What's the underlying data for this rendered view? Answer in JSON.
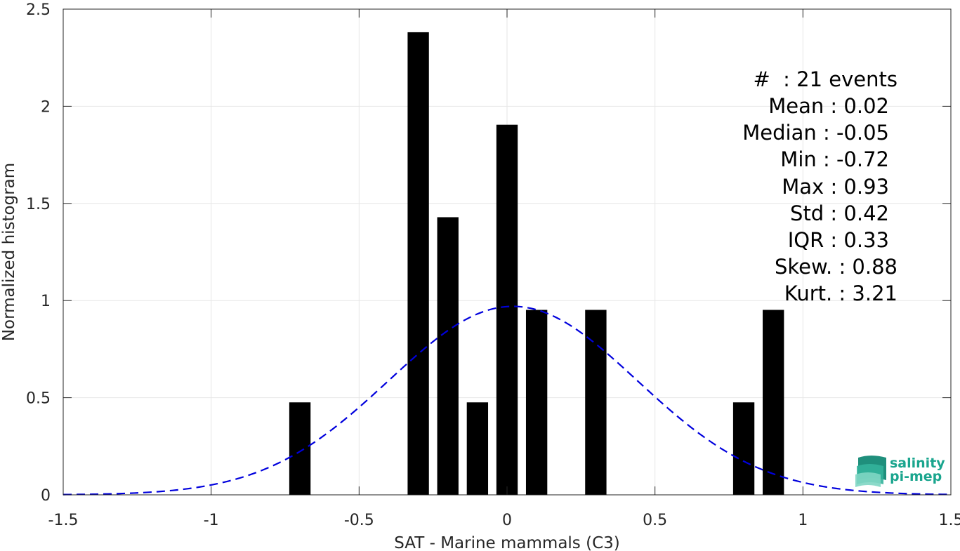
{
  "chart_data": {
    "type": "bar",
    "xlabel": "SAT - Marine mammals (C3)",
    "ylabel": "Normalized histogram",
    "xlim": [
      -1.5,
      1.5
    ],
    "ylim": [
      0,
      2.5
    ],
    "xticks": [
      -1.5,
      -1,
      -0.5,
      0,
      0.5,
      1,
      1.5
    ],
    "xtick_labels": [
      "-1.5",
      "-1",
      "-0.5",
      "0",
      "0.5",
      "1",
      "1.5"
    ],
    "yticks": [
      0,
      0.5,
      1,
      1.5,
      2,
      2.5
    ],
    "ytick_labels": [
      "0",
      "0.5",
      "1",
      "1.5",
      "2",
      "2.5"
    ],
    "grid": true,
    "bar_color": "#000000",
    "bin_width": 0.1,
    "bins": [
      {
        "center": -0.7,
        "value": 0.476
      },
      {
        "center": -0.3,
        "value": 2.381
      },
      {
        "center": -0.2,
        "value": 1.429
      },
      {
        "center": -0.1,
        "value": 0.476
      },
      {
        "center": 0.0,
        "value": 1.905
      },
      {
        "center": 0.1,
        "value": 0.952
      },
      {
        "center": 0.3,
        "value": 0.952
      },
      {
        "center": 0.8,
        "value": 0.476
      },
      {
        "center": 0.9,
        "value": 0.952
      }
    ],
    "fit_curve": {
      "type": "normal",
      "mean": 0.02,
      "std": 0.42,
      "peak": 0.97,
      "color": "#0000dd",
      "style": "dashed"
    },
    "stats": {
      "count": "#  : 21 events",
      "mean": "Mean : 0.02",
      "median": "Median : -0.05",
      "min": "Min : -0.72",
      "max": "Max : 0.93",
      "std": "Std : 0.42",
      "iqr": "IQR : 0.33",
      "skew": "Skew. : 0.88",
      "kurt": "Kurt. : 3.21"
    }
  },
  "logo": {
    "line1": "salinity",
    "line2": "pi-mep",
    "color": "#1aa58e"
  }
}
